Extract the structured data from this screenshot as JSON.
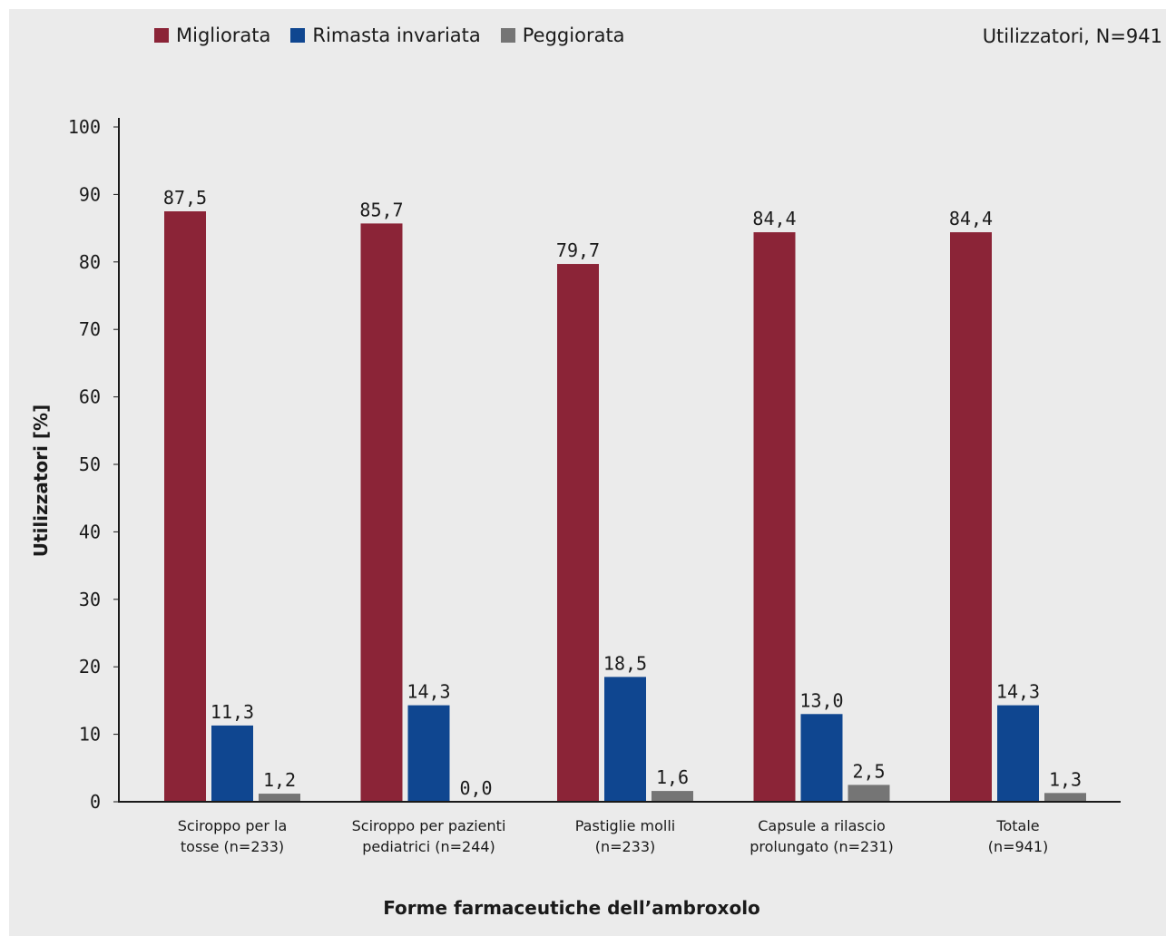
{
  "chart_data": {
    "type": "bar",
    "title": "",
    "subtitle": "Utilizzatori, N=941",
    "xlabel": "Forme farmaceutiche dell’ambroxolo",
    "ylabel": "Utilizzatori [%]",
    "ylim": [
      0,
      100
    ],
    "yticks": [
      "0",
      "10",
      "20",
      "30",
      "40",
      "50",
      "60",
      "70",
      "80",
      "90",
      "100"
    ],
    "categories": [
      [
        "Sciroppo per la",
        "tosse  (n=233)"
      ],
      [
        "Sciroppo per pazienti",
        "pediatrici  (n=244)"
      ],
      [
        "Pastiglie molli",
        "(n=233)"
      ],
      [
        "Capsule a rilascio",
        "prolungato  (n=231)"
      ],
      [
        "Totale",
        "(n=941)"
      ]
    ],
    "series": [
      {
        "name": "Migliorata",
        "color": "#8b2437",
        "values": [
          87.5,
          85.7,
          79.7,
          84.4,
          84.4
        ],
        "labels": [
          "87,5",
          "85,7",
          "79,7",
          "84,4",
          "84,4"
        ]
      },
      {
        "name": "Rimasta invariata",
        "color": "#0f4690",
        "values": [
          11.3,
          14.3,
          18.5,
          13.0,
          14.3
        ],
        "labels": [
          "11,3",
          "14,3",
          "18,5",
          "13,0",
          "14,3"
        ]
      },
      {
        "name": "Peggiorata",
        "color": "#757575",
        "values": [
          1.2,
          0.0,
          1.6,
          2.5,
          1.3
        ],
        "labels": [
          "1,2",
          "0,0",
          "1,6",
          "2,5",
          "1,3"
        ]
      }
    ],
    "grid": false,
    "legend": "top-left"
  }
}
